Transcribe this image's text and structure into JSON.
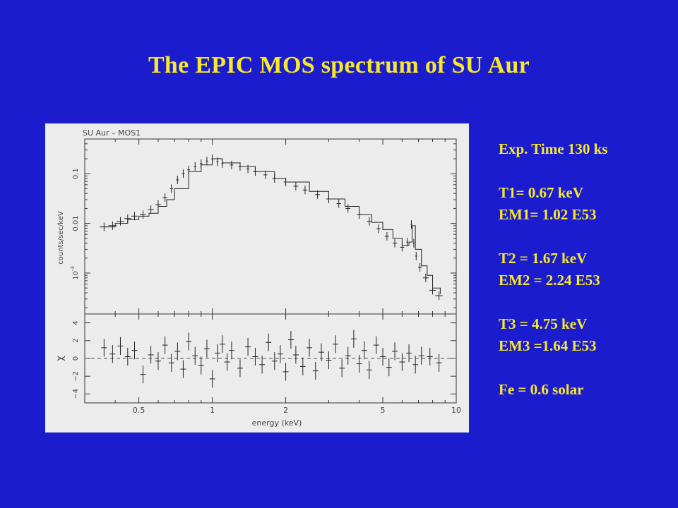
{
  "slide": {
    "title": "The EPIC MOS spectrum of SU Aur",
    "background_color": "#1c1ccf",
    "text_color": "#f7e92a"
  },
  "fit_parameters": [
    "Exp. Time 130 ks",
    "",
    "T1= 0.67 keV",
    "EM1= 1.02 E53",
    "",
    "T2 = 1.67 keV",
    "EM2 = 2.24 E53",
    "",
    "T3 = 4.75 keV",
    "EM3 =1.64 E53",
    "",
    "Fe = 0.6 solar"
  ],
  "chart_data": [
    {
      "type": "scatter",
      "title": "SU Aur – MOS1",
      "xlabel": "",
      "ylabel": "counts/sec/keV",
      "xscale": "log",
      "yscale": "log",
      "xlim": [
        0.3,
        10
      ],
      "ylim": [
        0.00015,
        0.5
      ],
      "y_ticks": [
        {
          "value": 0.001,
          "label": "10^-3"
        },
        {
          "value": 0.01,
          "label": "0.01"
        },
        {
          "value": 0.1,
          "label": "0.1"
        }
      ],
      "series": [
        {
          "kind": "data-with-errorbars",
          "x": [
            0.36,
            0.39,
            0.42,
            0.45,
            0.48,
            0.52,
            0.56,
            0.6,
            0.64,
            0.68,
            0.72,
            0.76,
            0.8,
            0.85,
            0.9,
            0.95,
            1.0,
            1.05,
            1.1,
            1.2,
            1.3,
            1.4,
            1.5,
            1.65,
            1.8,
            2.0,
            2.2,
            2.4,
            2.7,
            3.0,
            3.3,
            3.6,
            4.0,
            4.4,
            4.8,
            5.2,
            5.6,
            6.0,
            6.3,
            6.55,
            6.7,
            6.85,
            7.1,
            7.5,
            8.0,
            8.5
          ],
          "y": [
            0.0085,
            0.009,
            0.011,
            0.0125,
            0.014,
            0.015,
            0.019,
            0.024,
            0.033,
            0.05,
            0.075,
            0.1,
            0.12,
            0.14,
            0.16,
            0.18,
            0.2,
            0.175,
            0.16,
            0.15,
            0.14,
            0.125,
            0.11,
            0.095,
            0.08,
            0.068,
            0.056,
            0.047,
            0.038,
            0.031,
            0.025,
            0.02,
            0.015,
            0.011,
            0.0078,
            0.0055,
            0.004,
            0.0033,
            0.0042,
            0.0095,
            0.004,
            0.0022,
            0.0013,
            0.0008,
            0.00045,
            0.00035
          ],
          "xerr": [
            0.015,
            0.015,
            0.015,
            0.015,
            0.015,
            0.015,
            0.015,
            0.015,
            0.015,
            0.01,
            0.01,
            0.01,
            0.01,
            0.01,
            0.01,
            0.01,
            0.01,
            0.01,
            0.01,
            0.02,
            0.02,
            0.02,
            0.03,
            0.03,
            0.04,
            0.04,
            0.05,
            0.05,
            0.06,
            0.07,
            0.07,
            0.08,
            0.09,
            0.1,
            0.1,
            0.11,
            0.12,
            0.12,
            0.06,
            0.05,
            0.05,
            0.06,
            0.12,
            0.2,
            0.25,
            0.3
          ]
        },
        {
          "kind": "model-step",
          "x": [
            0.35,
            0.4,
            0.45,
            0.5,
            0.55,
            0.6,
            0.65,
            0.7,
            0.8,
            0.9,
            1.0,
            1.1,
            1.3,
            1.5,
            1.8,
            2.0,
            2.5,
            3.0,
            3.5,
            4.0,
            4.5,
            5.0,
            5.5,
            6.0,
            6.4,
            6.6,
            6.8,
            7.2,
            7.6,
            8.0,
            8.6
          ],
          "y": [
            0.0085,
            0.01,
            0.012,
            0.014,
            0.016,
            0.022,
            0.03,
            0.05,
            0.11,
            0.15,
            0.2,
            0.165,
            0.14,
            0.11,
            0.08,
            0.068,
            0.044,
            0.031,
            0.022,
            0.015,
            0.0105,
            0.0075,
            0.005,
            0.0036,
            0.0042,
            0.009,
            0.003,
            0.0014,
            0.0009,
            0.0005,
            0.00038
          ]
        }
      ]
    },
    {
      "type": "scatter",
      "title": "",
      "xlabel": "energy (keV)",
      "ylabel": "χ",
      "xscale": "log",
      "xlim": [
        0.3,
        10
      ],
      "ylim": [
        -5,
        5
      ],
      "x_ticks": [
        {
          "value": 0.5,
          "label": "0.5"
        },
        {
          "value": 1,
          "label": "1"
        },
        {
          "value": 2,
          "label": "2"
        },
        {
          "value": 5,
          "label": "5"
        },
        {
          "value": 10,
          "label": "10"
        }
      ],
      "y_ticks": [
        {
          "value": -4,
          "label": "−4"
        },
        {
          "value": -2,
          "label": "−2"
        },
        {
          "value": 0,
          "label": "0"
        },
        {
          "value": 2,
          "label": "2"
        },
        {
          "value": 4,
          "label": "4"
        }
      ],
      "series": [
        {
          "kind": "residuals",
          "x": [
            0.36,
            0.39,
            0.42,
            0.45,
            0.48,
            0.52,
            0.56,
            0.6,
            0.64,
            0.68,
            0.72,
            0.76,
            0.8,
            0.85,
            0.9,
            0.95,
            1.0,
            1.05,
            1.1,
            1.15,
            1.2,
            1.3,
            1.4,
            1.5,
            1.6,
            1.7,
            1.8,
            1.9,
            2.0,
            2.1,
            2.2,
            2.35,
            2.5,
            2.65,
            2.8,
            3.0,
            3.2,
            3.4,
            3.6,
            3.8,
            4.0,
            4.2,
            4.4,
            4.7,
            5.0,
            5.3,
            5.6,
            6.0,
            6.4,
            6.8,
            7.2,
            7.8,
            8.5
          ],
          "y": [
            1.2,
            0.5,
            1.4,
            0.2,
            0.9,
            -1.8,
            0.4,
            -0.3,
            1.5,
            -0.5,
            0.8,
            -1.2,
            1.9,
            0.3,
            -0.8,
            1.1,
            -2.3,
            0.6,
            1.6,
            -0.4,
            0.9,
            -1.1,
            1.3,
            0.2,
            -0.7,
            1.8,
            -0.3,
            0.5,
            -1.5,
            2.1,
            0.4,
            -0.9,
            1.2,
            -1.4,
            0.7,
            -0.2,
            1.6,
            -1.1,
            0.3,
            2.2,
            -0.6,
            0.9,
            -1.3,
            1.5,
            0.2,
            -1.0,
            0.8,
            -0.4,
            0.6,
            -0.7,
            0.3,
            0.2,
            -0.5
          ],
          "yerr": 1
        }
      ]
    }
  ]
}
